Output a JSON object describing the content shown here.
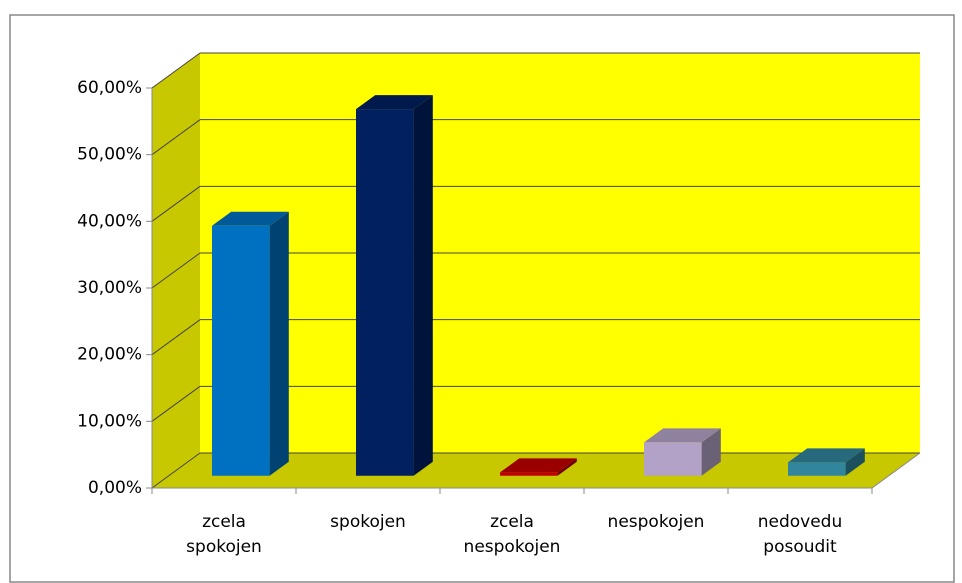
{
  "chart_data": {
    "type": "bar3d",
    "categories": [
      "zcela spokojen",
      "spokojen",
      "zcela nespokojen",
      "nespokojen",
      "nedovedu posoudit"
    ],
    "values": [
      37.5,
      55,
      0.5,
      5,
      2
    ],
    "colors": [
      "#0070c0",
      "#002060",
      "#c00000",
      "#b3a2c7",
      "#31859c"
    ],
    "wall_color": "#ffff00",
    "floor_color": "#c8c800",
    "ylim": [
      0,
      60
    ],
    "yticks": [
      {
        "value": 0,
        "label": "0,00%"
      },
      {
        "value": 10,
        "label": "10,00%"
      },
      {
        "value": 20,
        "label": "20,00%"
      },
      {
        "value": 30,
        "label": "30,00%"
      },
      {
        "value": 40,
        "label": "40,00%"
      },
      {
        "value": 50,
        "label": "50,00%"
      },
      {
        "value": 60,
        "label": "60,00%"
      }
    ],
    "grid": true
  }
}
